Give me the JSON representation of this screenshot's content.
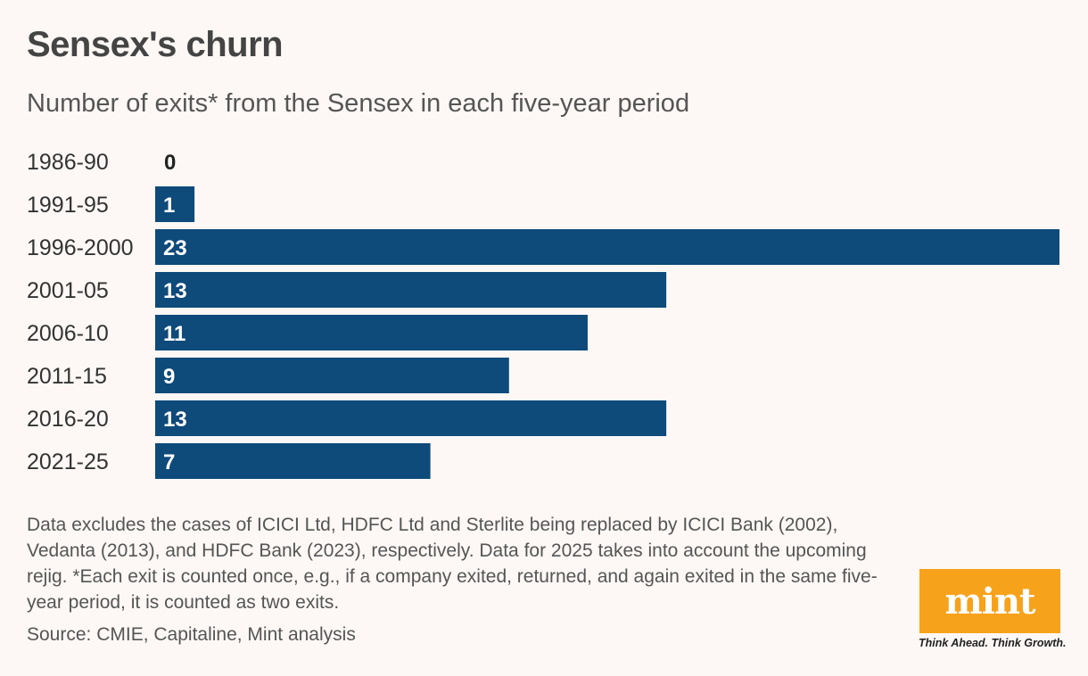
{
  "chart_data": {
    "type": "bar",
    "orientation": "horizontal",
    "title": "Sensex's churn",
    "subtitle": "Number of exits* from the Sensex in each five-year period",
    "categories": [
      "1986-90",
      "1991-95",
      "1996-2000",
      "2001-05",
      "2006-10",
      "2011-15",
      "2016-20",
      "2021-25"
    ],
    "values": [
      0,
      1,
      23,
      13,
      11,
      9,
      13,
      7
    ],
    "xlim": [
      0,
      23
    ],
    "bar_color": "#0e4a7a",
    "data_labels": true
  },
  "footer": {
    "note": "Data excludes the cases of ICICI Ltd, HDFC Ltd and Sterlite being replaced by ICICI Bank (2002), Vedanta (2013), and HDFC Bank (2023), respectively. Data for 2025 takes into account the upcoming rejig. *Each exit is counted once, e.g., if a company exited, returned, and again exited in the same five-year period, it is counted as two exits.",
    "source": "Source: CMIE, Capitaline, Mint analysis"
  },
  "branding": {
    "logo": "mint",
    "tagline": "Think Ahead. Think Growth.",
    "logo_color": "#f7a21b"
  }
}
